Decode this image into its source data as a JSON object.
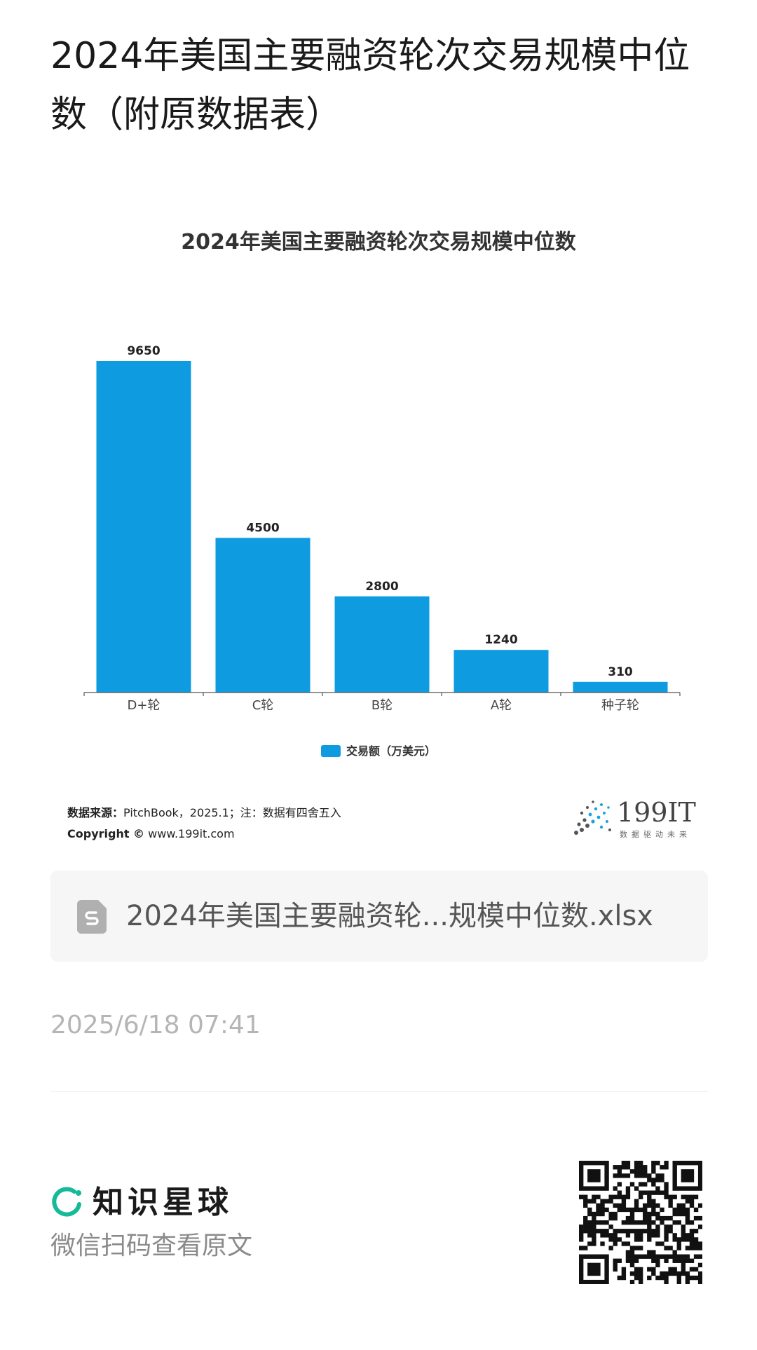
{
  "page": {
    "title": "2024年美国主要融资轮次交易规模中位数（附原数据表）"
  },
  "chart_data": {
    "type": "bar",
    "title": "2024年美国主要融资轮次交易规模中位数",
    "categories": [
      "D+轮",
      "C轮",
      "B轮",
      "A轮",
      "种子轮"
    ],
    "series": [
      {
        "name": "交易额（万美元）",
        "values": [
          9650,
          4500,
          2800,
          1240,
          310
        ]
      }
    ],
    "ylim": [
      0,
      9650
    ],
    "grid": false,
    "legend_position": "bottom",
    "bar_color": "#0e9be0"
  },
  "footer": {
    "source_label": "数据来源：",
    "source_text": "PitchBook，2025.1；注：数据有四舍五入",
    "copyright_label": "Copyright ©",
    "copyright_text": "www.199it.com",
    "brand_name": "199IT",
    "brand_slogan": "数据驱动未来"
  },
  "attachment": {
    "file_name": "2024年美国主要融资轮...规模中位数.xlsx",
    "icon": "spreadsheet-file-icon"
  },
  "meta": {
    "timestamp": "2025/6/18 07:41"
  },
  "promo": {
    "app_name": "知识星球",
    "hint": "微信扫码查看原文",
    "logo_color": "#16b998",
    "icon": "qr-code-icon"
  }
}
